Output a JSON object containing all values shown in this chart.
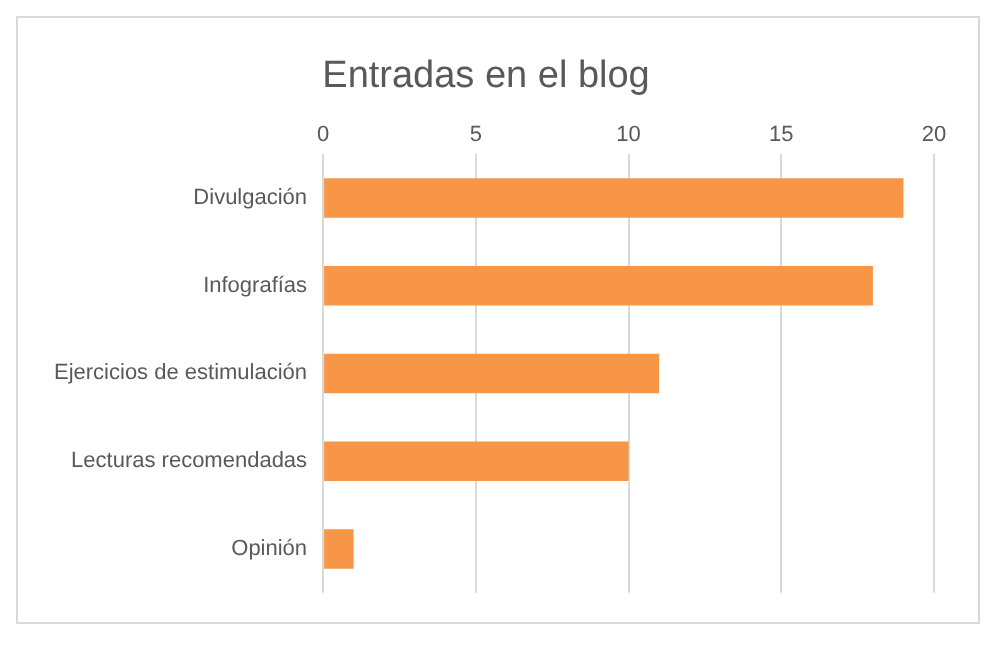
{
  "chart_data": {
    "type": "bar",
    "orientation": "horizontal",
    "title": "Entradas en el blog",
    "categories": [
      "Divulgación",
      "Infografías",
      "Ejercicios de estimulación",
      "Lecturas recomendadas",
      "Opinión"
    ],
    "values": [
      19,
      18,
      11,
      10,
      1
    ],
    "color": "#f79646",
    "xlim": [
      0,
      20
    ],
    "xticks": [
      0,
      5,
      10,
      15,
      20
    ],
    "grid": "x"
  }
}
